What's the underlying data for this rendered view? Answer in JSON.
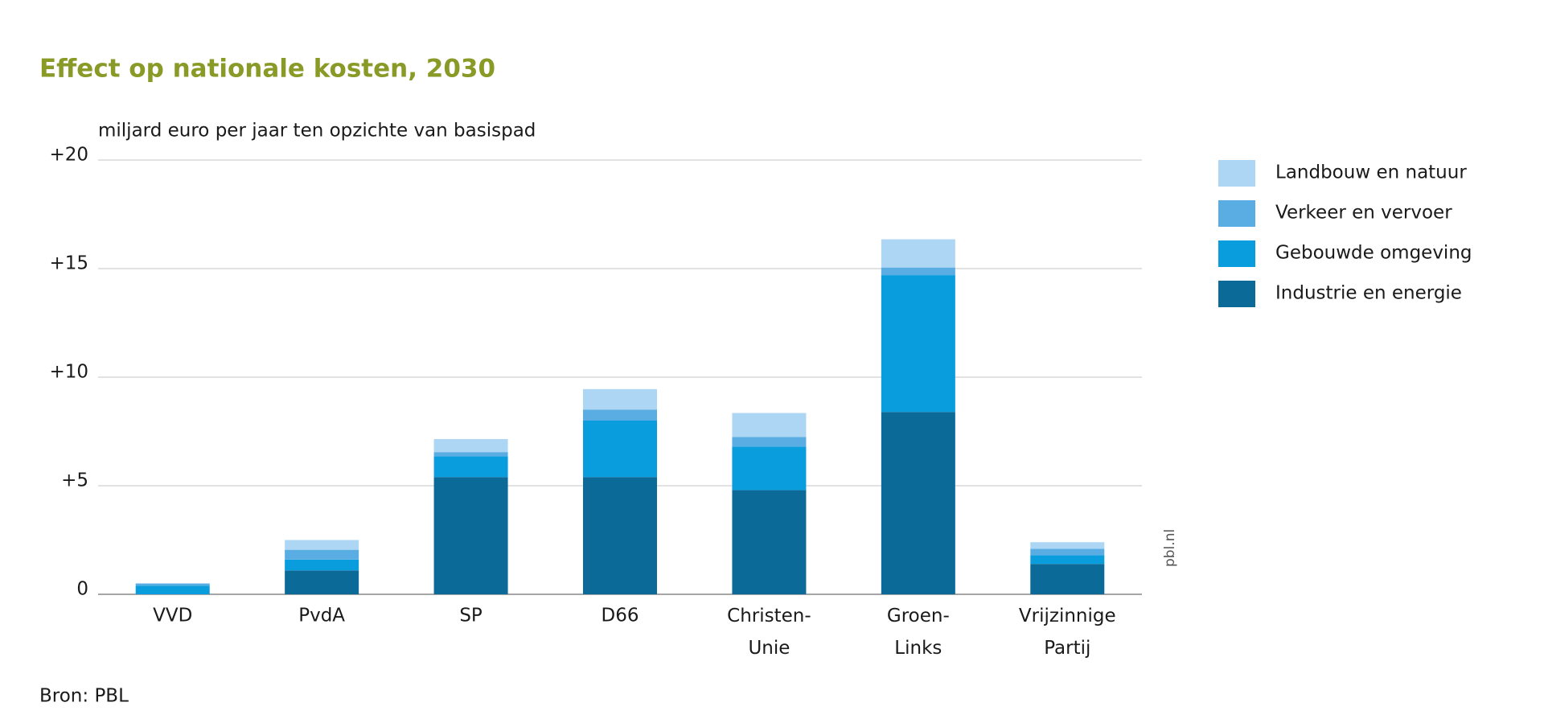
{
  "chart_data": {
    "type": "stacked_bar",
    "title": "Effect op nationale kosten, 2030",
    "y_label": "miljard euro per jaar ten opzichte van basispad",
    "source": "Bron: PBL",
    "watermark": "pbl.nl",
    "categories": [
      "VVD",
      "PvdA",
      "SP",
      "D66",
      "Christen-\nUnie",
      "Groen-\nLinks",
      "Vrijzinnige\nPartij"
    ],
    "series": [
      {
        "name": "Industrie en energie",
        "color": "#0b6a98",
        "values": [
          0,
          1.1,
          5.4,
          5.4,
          4.8,
          8.4,
          1.4
        ]
      },
      {
        "name": "Gebouwde omgeving",
        "color": "#0a9ddd",
        "values": [
          0.4,
          0.5,
          0.95,
          2.6,
          2.0,
          6.3,
          0.4
        ]
      },
      {
        "name": "Verkeer en vervoer",
        "color": "#5aade3",
        "values": [
          0.1,
          0.45,
          0.2,
          0.5,
          0.45,
          0.35,
          0.3
        ]
      },
      {
        "name": "Landbouw en natuur",
        "color": "#acd6f3",
        "values": [
          0,
          0.45,
          0.6,
          0.95,
          1.1,
          1.3,
          0.3
        ]
      }
    ],
    "ylim": [
      0,
      20
    ],
    "yticks": [
      0,
      {
        "value": 5,
        "label": "+5"
      },
      {
        "value": 10,
        "label": "+10"
      },
      {
        "value": 15,
        "label": "+15"
      },
      {
        "value": 20,
        "label": "+20"
      }
    ],
    "grid": true
  }
}
